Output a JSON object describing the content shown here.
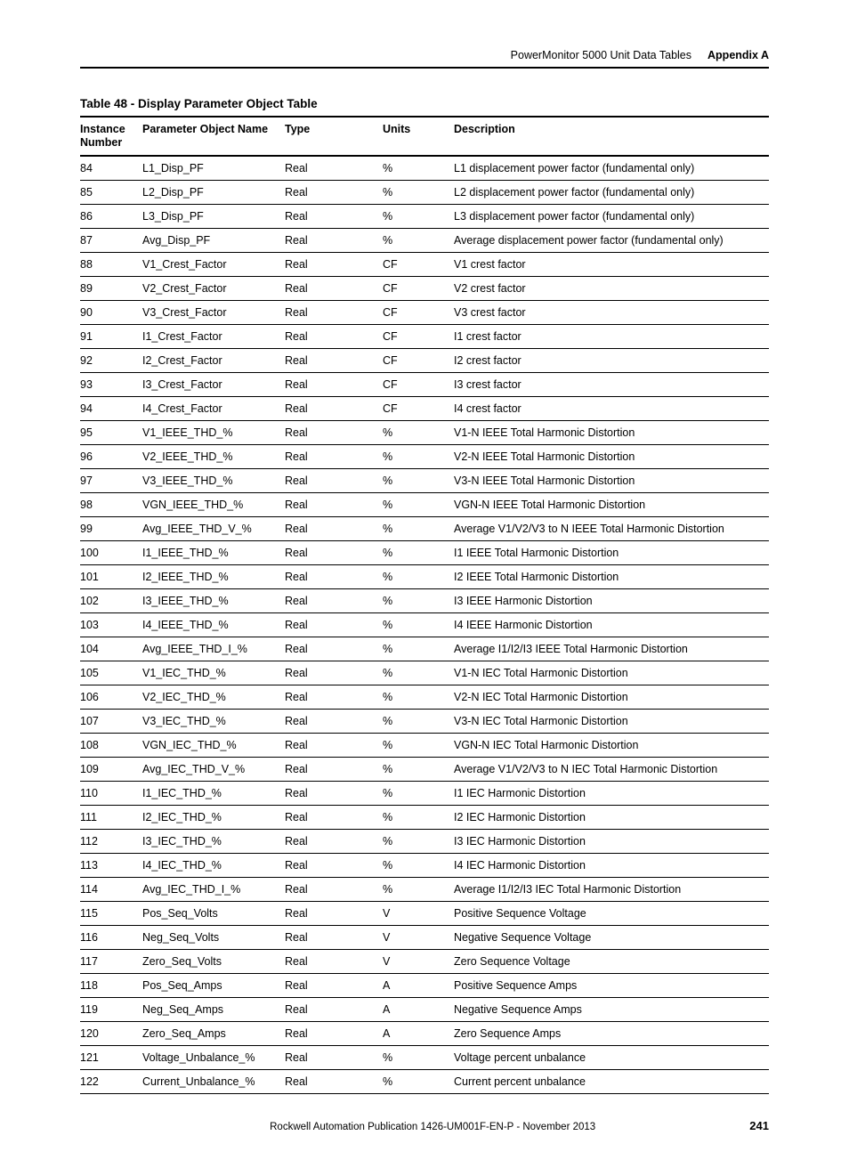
{
  "header": {
    "doc_title": "PowerMonitor 5000 Unit Data Tables",
    "appendix": "Appendix A"
  },
  "table": {
    "title": "Table 48 - Display Parameter Object Table",
    "columns": [
      "Instance Number",
      "Parameter Object Name",
      "Type",
      "Units",
      "Description"
    ],
    "rows": [
      [
        "84",
        "L1_Disp_PF",
        "Real",
        "%",
        "L1 displacement power factor (fundamental only)"
      ],
      [
        "85",
        "L2_Disp_PF",
        "Real",
        "%",
        "L2 displacement power factor (fundamental only)"
      ],
      [
        "86",
        "L3_Disp_PF",
        "Real",
        "%",
        "L3 displacement power factor (fundamental only)"
      ],
      [
        "87",
        "Avg_Disp_PF",
        "Real",
        "%",
        "Average displacement power factor (fundamental only)"
      ],
      [
        "88",
        "V1_Crest_Factor",
        "Real",
        "CF",
        "V1 crest factor"
      ],
      [
        "89",
        "V2_Crest_Factor",
        "Real",
        "CF",
        "V2 crest factor"
      ],
      [
        "90",
        "V3_Crest_Factor",
        "Real",
        "CF",
        "V3 crest factor"
      ],
      [
        "91",
        "I1_Crest_Factor",
        "Real",
        "CF",
        "I1 crest factor"
      ],
      [
        "92",
        "I2_Crest_Factor",
        "Real",
        "CF",
        "I2 crest factor"
      ],
      [
        "93",
        "I3_Crest_Factor",
        "Real",
        "CF",
        "I3 crest factor"
      ],
      [
        "94",
        "I4_Crest_Factor",
        "Real",
        "CF",
        "I4 crest factor"
      ],
      [
        "95",
        "V1_IEEE_THD_%",
        "Real",
        "%",
        "V1-N IEEE Total Harmonic Distortion"
      ],
      [
        "96",
        "V2_IEEE_THD_%",
        "Real",
        "%",
        "V2-N IEEE Total Harmonic Distortion"
      ],
      [
        "97",
        "V3_IEEE_THD_%",
        "Real",
        "%",
        "V3-N IEEE Total Harmonic Distortion"
      ],
      [
        "98",
        "VGN_IEEE_THD_%",
        "Real",
        "%",
        "VGN-N IEEE Total Harmonic Distortion"
      ],
      [
        "99",
        "Avg_IEEE_THD_V_%",
        "Real",
        "%",
        "Average V1/V2/V3 to N IEEE Total Harmonic Distortion"
      ],
      [
        "100",
        "I1_IEEE_THD_%",
        "Real",
        "%",
        "I1 IEEE Total Harmonic Distortion"
      ],
      [
        "101",
        "I2_IEEE_THD_%",
        "Real",
        "%",
        "I2 IEEE Total Harmonic Distortion"
      ],
      [
        "102",
        "I3_IEEE_THD_%",
        "Real",
        "%",
        "I3 IEEE Harmonic Distortion"
      ],
      [
        "103",
        "I4_IEEE_THD_%",
        "Real",
        "%",
        "I4 IEEE Harmonic Distortion"
      ],
      [
        "104",
        "Avg_IEEE_THD_I_%",
        "Real",
        "%",
        "Average I1/I2/I3 IEEE Total Harmonic Distortion"
      ],
      [
        "105",
        "V1_IEC_THD_%",
        "Real",
        "%",
        "V1-N IEC Total Harmonic Distortion"
      ],
      [
        "106",
        "V2_IEC_THD_%",
        "Real",
        "%",
        "V2-N IEC Total Harmonic Distortion"
      ],
      [
        "107",
        "V3_IEC_THD_%",
        "Real",
        "%",
        "V3-N IEC Total Harmonic Distortion"
      ],
      [
        "108",
        "VGN_IEC_THD_%",
        "Real",
        "%",
        "VGN-N IEC Total Harmonic Distortion"
      ],
      [
        "109",
        "Avg_IEC_THD_V_%",
        "Real",
        "%",
        "Average V1/V2/V3 to N IEC Total Harmonic Distortion"
      ],
      [
        "110",
        "I1_IEC_THD_%",
        "Real",
        "%",
        "I1 IEC Harmonic Distortion"
      ],
      [
        "111",
        "I2_IEC_THD_%",
        "Real",
        "%",
        "I2 IEC Harmonic Distortion"
      ],
      [
        "112",
        "I3_IEC_THD_%",
        "Real",
        "%",
        "I3 IEC Harmonic Distortion"
      ],
      [
        "113",
        "I4_IEC_THD_%",
        "Real",
        "%",
        "I4 IEC Harmonic Distortion"
      ],
      [
        "114",
        "Avg_IEC_THD_I_%",
        "Real",
        "%",
        "Average I1/I2/I3 IEC Total Harmonic Distortion"
      ],
      [
        "115",
        "Pos_Seq_Volts",
        "Real",
        "V",
        "Positive Sequence Voltage"
      ],
      [
        "116",
        "Neg_Seq_Volts",
        "Real",
        "V",
        "Negative Sequence Voltage"
      ],
      [
        "117",
        "Zero_Seq_Volts",
        "Real",
        "V",
        "Zero Sequence Voltage"
      ],
      [
        "118",
        "Pos_Seq_Amps",
        "Real",
        "A",
        "Positive Sequence Amps"
      ],
      [
        "119",
        "Neg_Seq_Amps",
        "Real",
        "A",
        "Negative Sequence Amps"
      ],
      [
        "120",
        "Zero_Seq_Amps",
        "Real",
        "A",
        "Zero Sequence Amps"
      ],
      [
        "121",
        "Voltage_Unbalance_%",
        "Real",
        "%",
        "Voltage percent unbalance"
      ],
      [
        "122",
        "Current_Unbalance_%",
        "Real",
        "%",
        "Current percent unbalance"
      ]
    ]
  },
  "footer": {
    "publication": "Rockwell Automation Publication 1426-UM001F-EN-P - November 2013",
    "page": "241"
  }
}
